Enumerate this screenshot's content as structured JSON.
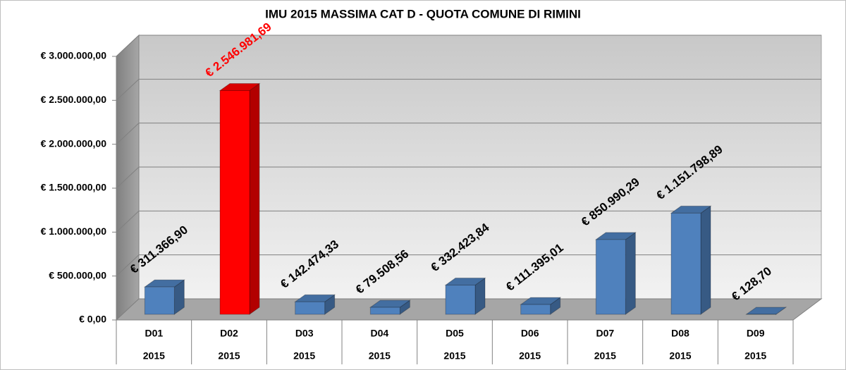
{
  "chart_data": {
    "type": "bar",
    "title": "IMU 2015 MASSIMA CAT D - QUOTA COMUNE DI RIMINI",
    "categories": [
      "D01",
      "D02",
      "D03",
      "D04",
      "D05",
      "D06",
      "D07",
      "D08",
      "D09"
    ],
    "category_years": [
      "2015",
      "2015",
      "2015",
      "2015",
      "2015",
      "2015",
      "2015",
      "2015",
      "2015"
    ],
    "values": [
      311366.9,
      2546981.69,
      142474.33,
      79508.56,
      332423.84,
      111395.01,
      850990.29,
      1151798.89,
      128.7
    ],
    "value_labels": [
      "€ 311.366,90",
      "€ 2.546.981,69",
      "€ 142.474,33",
      "€ 79.508,56",
      "€ 332.423,84",
      "€ 111.395,01",
      "€ 850.990,29",
      "€ 1.151.798,89",
      "€ 128,70"
    ],
    "colors": [
      "#4f81bd",
      "#ff0000",
      "#4f81bd",
      "#4f81bd",
      "#4f81bd",
      "#4f81bd",
      "#4f81bd",
      "#4f81bd",
      "#4f81bd"
    ],
    "label_colors": [
      "#000000",
      "#ff0000",
      "#000000",
      "#000000",
      "#000000",
      "#000000",
      "#000000",
      "#000000",
      "#000000"
    ],
    "ylim": [
      0,
      3000000
    ],
    "yticks": [
      {
        "value": 0,
        "label": "€ 0,00"
      },
      {
        "value": 500000,
        "label": "€ 500.000,00"
      },
      {
        "value": 1000000,
        "label": "€ 1.000.000,00"
      },
      {
        "value": 1500000,
        "label": "€ 1.500.000,00"
      },
      {
        "value": 2000000,
        "label": "€ 2.000.000,00"
      },
      {
        "value": 2500000,
        "label": "€ 2.500.000,00"
      },
      {
        "value": 3000000,
        "label": "€ 3.000.000,00"
      }
    ],
    "grid": true
  }
}
